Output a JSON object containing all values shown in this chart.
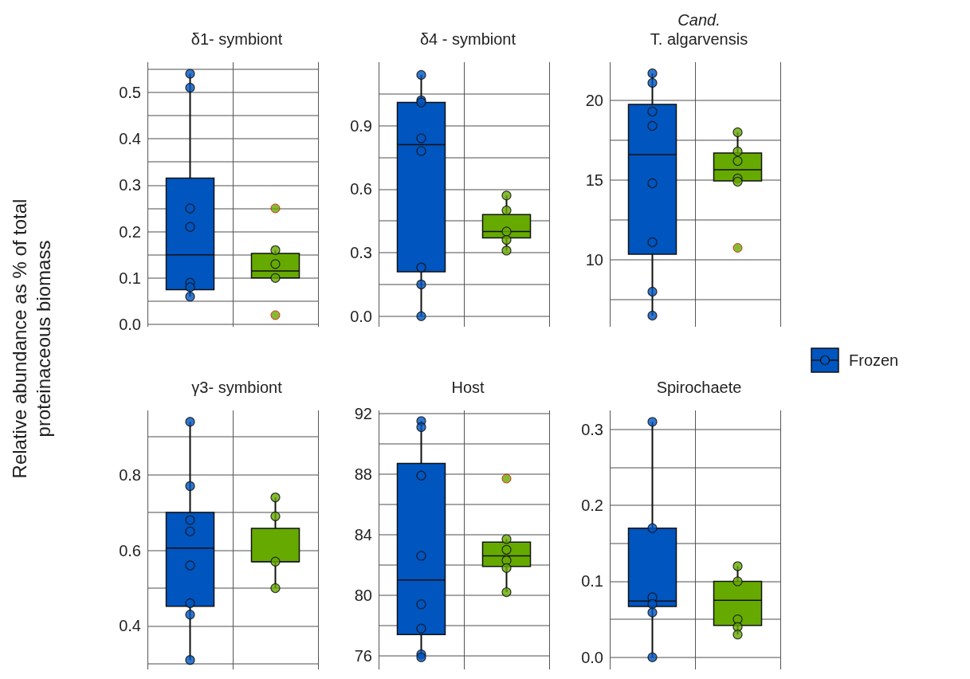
{
  "chart_data": [
    {
      "type": "box",
      "title": "δ1- symbiont",
      "ylabel": "Relative abundance as % of total proteinaceous biomass",
      "categories": [
        null,
        null
      ],
      "ylim": [
        -0.005,
        0.565
      ],
      "yticks": [
        {
          "value": 0,
          "label": "0.0"
        },
        {
          "value": 0.05,
          "label": null
        },
        0.1,
        {
          "value": 0.15,
          "label": null
        },
        0.2,
        {
          "value": 0.25,
          "label": null
        },
        0.3,
        {
          "value": 0.35,
          "label": null
        },
        0.4,
        {
          "value": 0.45,
          "label": null
        },
        0.5,
        {
          "value": 0.55,
          "label": null
        }
      ],
      "grid": true,
      "marker": "circle",
      "series": [
        {
          "color": "#0055bf",
          "boxes": [
            {
              "low": 0.06,
              "q1": 0.075,
              "median": 0.15,
              "q3": 0.315,
              "high": 0.54
            },
            null
          ]
        },
        {
          "color": "#66aa00",
          "boxes": [
            null,
            {
              "low": 0.1,
              "q1": 0.1,
              "median": 0.115,
              "q3": 0.153,
              "high": 0.16,
              "outliers": [
                0.25,
                0.02
              ]
            }
          ]
        },
        {
          "type": "scatter",
          "colors": [
            "#0055bf",
            "#66aa00"
          ],
          "values": [
            0.54,
            0.16
          ]
        },
        {
          "type": "scatter",
          "colors": [
            "#0055bf",
            "#66aa00"
          ],
          "values": [
            0.51,
            0.13
          ]
        },
        {
          "type": "scatter",
          "colors": [
            "#0055bf",
            "#66aa00"
          ],
          "values": [
            0.25,
            0.1
          ]
        },
        {
          "type": "scatter",
          "color": "#0055bf",
          "values": [
            0.21,
            null
          ]
        },
        {
          "type": "scatter",
          "color": "#0055bf",
          "values": [
            0.09,
            null
          ]
        },
        {
          "type": "scatter",
          "color": "#0055bf",
          "values": [
            0.08,
            null
          ]
        },
        {
          "type": "scatter",
          "color": "#0055bf",
          "values": [
            0.06,
            null
          ]
        }
      ]
    },
    {
      "type": "box",
      "title": "δ4 - symbiont",
      "categories": [
        null,
        null
      ],
      "ylim": [
        -0.05,
        1.2
      ],
      "yticks": [
        {
          "value": 0,
          "label": "0.0"
        },
        {
          "value": 0.15,
          "label": null
        },
        0.3,
        {
          "value": 0.45,
          "label": null
        },
        0.6,
        {
          "value": 0.75,
          "label": null
        },
        0.9,
        {
          "value": 1.05,
          "label": null
        }
      ],
      "grid": true,
      "marker": "circle",
      "series": [
        {
          "color": "#0055bf",
          "boxes": [
            {
              "low": 0,
              "q1": 0.21,
              "median": 0.81,
              "q3": 1.01,
              "high": 1.14
            },
            null
          ]
        },
        {
          "color": "#66aa00",
          "boxes": [
            null,
            {
              "low": 0.31,
              "q1": 0.37,
              "median": 0.4,
              "q3": 0.48,
              "high": 0.57
            }
          ]
        },
        {
          "type": "scatter",
          "colors": [
            "#0055bf",
            "#66aa00"
          ],
          "values": [
            1.14,
            0.57
          ]
        },
        {
          "type": "scatter",
          "colors": [
            "#0055bf",
            "#66aa00"
          ],
          "values": [
            1.02,
            0.5
          ]
        },
        {
          "type": "scatter",
          "colors": [
            "#0055bf",
            "#66aa00"
          ],
          "values": [
            1.01,
            0.4
          ]
        },
        {
          "type": "scatter",
          "colors": [
            "#0055bf",
            "#66aa00"
          ],
          "values": [
            0.84,
            0.36
          ]
        },
        {
          "type": "scatter",
          "colors": [
            "#0055bf",
            "#66aa00"
          ],
          "values": [
            0.78,
            0.31
          ]
        },
        {
          "type": "scatter",
          "color": "#0055bf",
          "values": [
            0.23,
            null
          ]
        },
        {
          "type": "scatter",
          "color": "#0055bf",
          "values": [
            0.15,
            null
          ]
        },
        {
          "type": "scatter",
          "color": "#0055bf",
          "values": [
            0,
            null
          ]
        }
      ]
    },
    {
      "type": "box",
      "title": "Cand.\nT. algarvensis",
      "categories": [
        null,
        null
      ],
      "ylim": [
        5.8,
        22.4
      ],
      "yticks": [
        {
          "value": 7.5,
          "label": null
        },
        10,
        {
          "value": 12.5,
          "label": null
        },
        15,
        {
          "value": 17.5,
          "label": null
        },
        20
      ],
      "grid": true,
      "marker": "circle",
      "legend": "right",
      "series": [
        {
          "name": "Frozen",
          "color": "#0055bf",
          "boxes": [
            {
              "low": 6.5,
              "q1": 10.35,
              "median": 16.6,
              "q3": 19.75,
              "high": 21.7
            },
            null
          ]
        },
        {
          "color": "#66aa00",
          "boxes": [
            null,
            {
              "low": 14.9,
              "q1": 14.95,
              "median": 15.65,
              "q3": 16.7,
              "high": 18.0,
              "outliers": [
                10.75
              ]
            }
          ]
        },
        {
          "type": "scatter",
          "colors": [
            "#0055bf",
            "#66aa00"
          ],
          "values": [
            21.7,
            18.0
          ]
        },
        {
          "type": "scatter",
          "colors": [
            "#0055bf",
            "#66aa00"
          ],
          "values": [
            21.1,
            16.8
          ]
        },
        {
          "type": "scatter",
          "colors": [
            "#0055bf",
            "#66aa00"
          ],
          "values": [
            19.3,
            16.2
          ]
        },
        {
          "type": "scatter",
          "colors": [
            "#0055bf",
            "#66aa00"
          ],
          "values": [
            18.4,
            15.1
          ]
        },
        {
          "type": "scatter",
          "colors": [
            "#0055bf",
            "#66aa00"
          ],
          "values": [
            14.8,
            14.9
          ]
        },
        {
          "type": "scatter",
          "color": "#0055bf",
          "values": [
            11.1,
            null
          ]
        },
        {
          "type": "scatter",
          "color": "#0055bf",
          "values": [
            8.0,
            null
          ]
        },
        {
          "type": "scatter",
          "color": "#0055bf",
          "values": [
            6.5,
            null
          ]
        }
      ]
    },
    {
      "type": "box",
      "title": "γ3- symbiont",
      "categories": [
        null,
        null
      ],
      "ylim": [
        0.285,
        0.97
      ],
      "yticks": [
        {
          "value": 0.3,
          "label": null
        },
        0.4,
        {
          "value": 0.5,
          "label": null
        },
        0.6,
        {
          "value": 0.7,
          "label": null
        },
        0.8,
        {
          "value": 0.9,
          "label": null
        }
      ],
      "grid": true,
      "marker": "circle",
      "series": [
        {
          "color": "#0055bf",
          "boxes": [
            {
              "low": 0.31,
              "q1": 0.452,
              "median": 0.606,
              "q3": 0.7,
              "high": 0.94
            },
            null
          ]
        },
        {
          "color": "#66aa00",
          "boxes": [
            null,
            {
              "low": 0.5,
              "q1": 0.57,
              "median": 0.57,
              "q3": 0.658,
              "high": 0.74
            }
          ]
        },
        {
          "type": "scatter",
          "colors": [
            "#0055bf",
            "#66aa00"
          ],
          "values": [
            0.94,
            0.74
          ]
        },
        {
          "type": "scatter",
          "colors": [
            "#0055bf",
            "#66aa00"
          ],
          "values": [
            0.77,
            0.69
          ]
        },
        {
          "type": "scatter",
          "colors": [
            "#0055bf",
            "#66aa00"
          ],
          "values": [
            0.68,
            0.57
          ]
        },
        {
          "type": "scatter",
          "colors": [
            "#0055bf",
            "#66aa00"
          ],
          "values": [
            0.65,
            0.5
          ]
        },
        {
          "type": "scatter",
          "color": "#0055bf",
          "values": [
            0.56,
            null
          ]
        },
        {
          "type": "scatter",
          "color": "#0055bf",
          "values": [
            0.46,
            null
          ]
        },
        {
          "type": "scatter",
          "color": "#0055bf",
          "values": [
            0.43,
            null
          ]
        },
        {
          "type": "scatter",
          "color": "#0055bf",
          "values": [
            0.31,
            null
          ]
        }
      ]
    },
    {
      "type": "box",
      "title": "Host",
      "categories": [
        null,
        null
      ],
      "ylim": [
        75.1,
        92.2
      ],
      "yticks": [
        76,
        {
          "value": 78,
          "label": null
        },
        80,
        {
          "value": 82,
          "label": null
        },
        84,
        {
          "value": 86,
          "label": null
        },
        88,
        {
          "value": 90,
          "label": null
        },
        92
      ],
      "grid": true,
      "marker": "circle",
      "series": [
        {
          "color": "#0055bf",
          "boxes": [
            {
              "low": 75.9,
              "q1": 77.4,
              "median": 81.0,
              "q3": 88.7,
              "high": 91.5
            },
            null
          ]
        },
        {
          "color": "#66aa00",
          "boxes": [
            null,
            {
              "low": 80.2,
              "q1": 81.9,
              "median": 82.6,
              "q3": 83.5,
              "high": 83.7,
              "outliers": [
                87.7
              ]
            }
          ]
        },
        {
          "type": "scatter",
          "colors": [
            "#0055bf",
            "#66aa00"
          ],
          "values": [
            91.5,
            83.7
          ]
        },
        {
          "type": "scatter",
          "colors": [
            "#0055bf",
            "#66aa00"
          ],
          "values": [
            91.1,
            83.0
          ]
        },
        {
          "type": "scatter",
          "colors": [
            "#0055bf",
            "#66aa00"
          ],
          "values": [
            87.9,
            82.3
          ]
        },
        {
          "type": "scatter",
          "colors": [
            "#0055bf",
            "#66aa00"
          ],
          "values": [
            82.6,
            81.8
          ]
        },
        {
          "type": "scatter",
          "colors": [
            "#0055bf",
            "#66aa00"
          ],
          "values": [
            79.4,
            80.2
          ]
        },
        {
          "type": "scatter",
          "color": "#0055bf",
          "values": [
            77.8,
            null
          ]
        },
        {
          "type": "scatter",
          "color": "#0055bf",
          "values": [
            76.1,
            null
          ]
        },
        {
          "type": "scatter",
          "color": "#0055bf",
          "values": [
            75.9,
            null
          ]
        }
      ]
    },
    {
      "type": "box",
      "title": "Spirochaete",
      "categories": [
        null,
        null
      ],
      "ylim": [
        -0.016,
        0.325
      ],
      "yticks": [
        {
          "value": 0,
          "label": "0.0"
        },
        {
          "value": 0.05,
          "label": null
        },
        0.1,
        {
          "value": 0.15,
          "label": null
        },
        0.2,
        {
          "value": 0.25,
          "label": null
        },
        0.3
      ],
      "grid": true,
      "marker": "circle",
      "series": [
        {
          "color": "#0055bf",
          "boxes": [
            {
              "low": 0,
              "q1": 0.067,
              "median": 0.074,
              "q3": 0.17,
              "high": 0.31
            },
            null
          ]
        },
        {
          "color": "#66aa00",
          "boxes": [
            null,
            {
              "low": 0.03,
              "q1": 0.042,
              "median": 0.075,
              "q3": 0.1,
              "high": 0.12
            }
          ]
        },
        {
          "type": "scatter",
          "colors": [
            "#0055bf",
            "#66aa00"
          ],
          "values": [
            0.31,
            0.12
          ]
        },
        {
          "type": "scatter",
          "colors": [
            "#0055bf",
            "#66aa00"
          ],
          "values": [
            0.17,
            0.1
          ]
        },
        {
          "type": "scatter",
          "colors": [
            "#0055bf",
            "#66aa00"
          ],
          "values": [
            0.079,
            0.05
          ]
        },
        {
          "type": "scatter",
          "colors": [
            "#0055bf",
            "#66aa00"
          ],
          "values": [
            0.07,
            0.04
          ]
        },
        {
          "type": "scatter",
          "colors": [
            "#0055bf",
            "#66aa00"
          ],
          "values": [
            0.059,
            0.03
          ]
        },
        {
          "type": "scatter",
          "color": "#0055bf",
          "values": [
            0,
            null
          ]
        }
      ]
    }
  ]
}
